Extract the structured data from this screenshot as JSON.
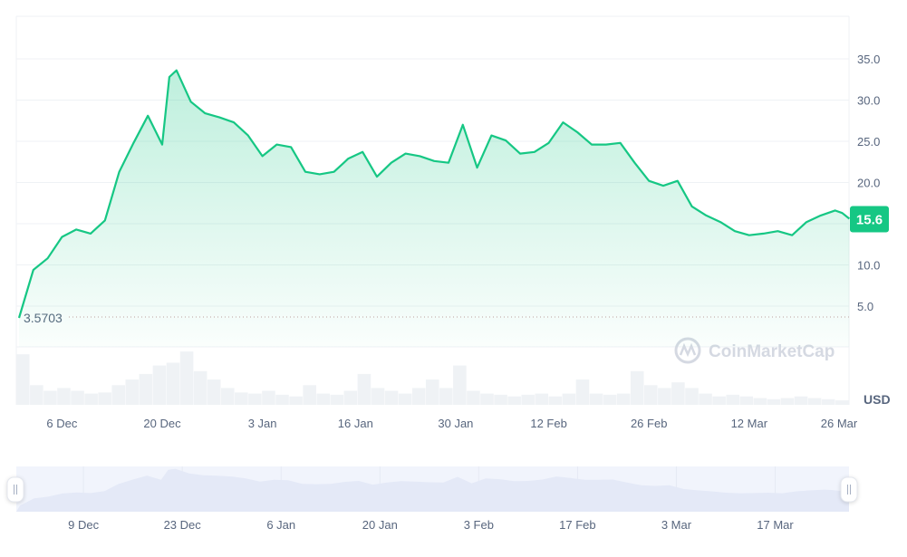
{
  "chart_data": {
    "type": "area",
    "currency_label": "USD",
    "current_price_label": "15.6",
    "start_price_label": "3.5703",
    "watermark": "CoinMarketCap",
    "y_ticks": [
      "5.0",
      "10.0",
      "15.0",
      "20.0",
      "25.0",
      "30.0",
      "35.0"
    ],
    "y_tick_values": [
      5,
      10,
      15,
      20,
      25,
      30,
      35
    ],
    "visible_y_tick_labels": [
      "5.0",
      "10.0",
      "20.0",
      "25.0",
      "30.0",
      "35.0"
    ],
    "ylim": [
      0,
      40
    ],
    "grid": true,
    "x_ticks": [
      "6 Dec",
      "20 Dec",
      "3 Jan",
      "16 Jan",
      "30 Jan",
      "12 Feb",
      "26 Feb",
      "12 Mar",
      "26 Mar"
    ],
    "navigator_ticks": [
      "9 Dec",
      "23 Dec",
      "6 Jan",
      "20 Jan",
      "3 Feb",
      "17 Feb",
      "3 Mar",
      "17 Mar"
    ],
    "colors": {
      "line": "#16c784",
      "area": "#16c784",
      "badge": "#16c784",
      "navigator": "#e4e9f7",
      "volume": "#eff2f5",
      "baseline": "#c4a0a0"
    },
    "x": [
      "30 Nov",
      "2 Dec",
      "4 Dec",
      "6 Dec",
      "8 Dec",
      "10 Dec",
      "12 Dec",
      "14 Dec",
      "16 Dec",
      "18 Dec",
      "20 Dec",
      "21 Dec",
      "22 Dec",
      "24 Dec",
      "26 Dec",
      "28 Dec",
      "30 Dec",
      "1 Jan",
      "3 Jan",
      "5 Jan",
      "7 Jan",
      "9 Jan",
      "11 Jan",
      "13 Jan",
      "15 Jan",
      "17 Jan",
      "19 Jan",
      "21 Jan",
      "23 Jan",
      "25 Jan",
      "27 Jan",
      "29 Jan",
      "31 Jan",
      "2 Feb",
      "4 Feb",
      "6 Feb",
      "8 Feb",
      "10 Feb",
      "12 Feb",
      "14 Feb",
      "16 Feb",
      "18 Feb",
      "20 Feb",
      "22 Feb",
      "24 Feb",
      "26 Feb",
      "28 Feb",
      "2 Mar",
      "4 Mar",
      "6 Mar",
      "8 Mar",
      "10 Mar",
      "12 Mar",
      "14 Mar",
      "16 Mar",
      "18 Mar",
      "20 Mar",
      "22 Mar",
      "24 Mar",
      "25 Mar",
      "26 Mar"
    ],
    "price": [
      3.57,
      9.4,
      10.8,
      13.4,
      14.3,
      13.8,
      15.4,
      21.3,
      24.8,
      28.1,
      24.6,
      32.8,
      33.6,
      29.8,
      28.4,
      27.9,
      27.3,
      25.7,
      23.2,
      24.6,
      24.3,
      21.3,
      21.0,
      21.3,
      22.9,
      23.7,
      20.7,
      22.4,
      23.5,
      23.2,
      22.6,
      22.4,
      27.0,
      21.8,
      25.7,
      25.1,
      23.5,
      23.7,
      24.8,
      27.3,
      26.1,
      24.6,
      24.6,
      24.8,
      22.4,
      20.2,
      19.6,
      20.2,
      17.1,
      16.0,
      15.2,
      14.1,
      13.6,
      13.8,
      14.1,
      13.6,
      15.2,
      16.0,
      16.6,
      16.3,
      15.6
    ],
    "volume_relative": [
      90,
      35,
      25,
      30,
      25,
      20,
      22,
      35,
      45,
      55,
      70,
      75,
      95,
      60,
      45,
      30,
      22,
      20,
      25,
      18,
      15,
      35,
      20,
      18,
      25,
      55,
      30,
      25,
      20,
      30,
      45,
      30,
      70,
      25,
      20,
      18,
      15,
      18,
      20,
      15,
      20,
      45,
      20,
      18,
      20,
      60,
      35,
      30,
      40,
      30,
      20,
      15,
      18,
      15,
      12,
      10,
      12,
      15,
      12,
      10,
      8
    ]
  }
}
